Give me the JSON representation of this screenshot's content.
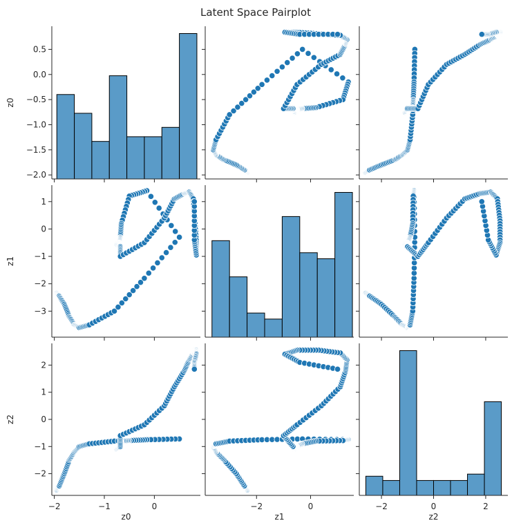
{
  "chart_data": {
    "type": "scatter",
    "title": "Latent Space Pairplot",
    "variables": [
      "z0",
      "z1",
      "z2"
    ],
    "colors": {
      "point": "#1f77b4",
      "point_edge": "#ffffff",
      "hist_fill": "#5a9bc8",
      "hist_edge": "#000000",
      "axis": "#262626"
    },
    "grid": false,
    "axes": {
      "z0": {
        "lim": [
          -2.05,
          0.92
        ],
        "ticks": [
          -2,
          -1,
          0
        ],
        "row_lim": [
          -2.08,
          0.96
        ],
        "row_ticks": [
          -2.0,
          -1.5,
          -1.0,
          -0.5,
          0.0,
          0.5
        ],
        "row_tick_labels": [
          "−2.0",
          "−1.5",
          "−1.0",
          "−0.5",
          "0.0",
          "0.5"
        ],
        "tick_labels": [
          "−2",
          "−1",
          "0"
        ]
      },
      "z1": {
        "lim": [
          -3.9,
          1.6
        ],
        "ticks": [
          -2,
          0
        ],
        "tick_labels": [
          "−2",
          "0"
        ],
        "row_lim": [
          -3.95,
          1.6
        ],
        "row_ticks": [
          -3,
          -2,
          -1,
          0,
          1
        ],
        "row_tick_labels": [
          "−3",
          "−2",
          "−1",
          "0",
          "1"
        ]
      },
      "z2": {
        "lim": [
          -2.85,
          2.85
        ],
        "ticks": [
          -2,
          0,
          2
        ],
        "tick_labels": [
          "−2",
          "0",
          "2"
        ],
        "row_lim": [
          -2.8,
          2.8
        ],
        "row_ticks": [
          -2,
          -1,
          0,
          1,
          2
        ],
        "row_tick_labels": [
          "−2",
          "−1",
          "0",
          "1",
          "2"
        ]
      }
    },
    "histograms": {
      "z0": {
        "edges": [
          -1.95,
          -1.6,
          -1.25,
          -0.9,
          -0.55,
          -0.2,
          0.15,
          0.5,
          0.85
        ],
        "counts": [
          18,
          14,
          8,
          22,
          9,
          9,
          11,
          31
        ]
      },
      "z1": {
        "edges": [
          -3.65,
          -3.0,
          -2.35,
          -1.7,
          -1.05,
          -0.4,
          0.25,
          0.9,
          1.55
        ],
        "counts": [
          16,
          10,
          4,
          3,
          20,
          14,
          13,
          24
        ]
      },
      "z2": {
        "edges": [
          -2.6,
          -1.95,
          -1.3,
          -0.65,
          0.0,
          0.65,
          1.3,
          1.95,
          2.6
        ],
        "counts": [
          9,
          7,
          68,
          7,
          7,
          7,
          10,
          44
        ]
      }
    },
    "keypoints": [
      [
        -2.6,
        -1.95,
        -2.35
      ],
      [
        -2.45,
        -1.9,
        -2.45
      ],
      [
        -2.0,
        -1.8,
        -2.75
      ],
      [
        -1.5,
        -1.7,
        -3.2
      ],
      [
        -1.2,
        -1.6,
        -3.5
      ],
      [
        -1.0,
        -1.5,
        -3.6
      ],
      [
        -0.9,
        -1.3,
        -3.5
      ],
      [
        -0.8,
        -0.8,
        -3.0
      ],
      [
        -0.75,
        -0.2,
        -1.8
      ],
      [
        -0.72,
        0.5,
        -0.3
      ],
      [
        -0.75,
        -0.15,
        1.4
      ],
      [
        -0.78,
        -0.5,
        1.2
      ],
      [
        -0.8,
        -0.66,
        0.2
      ],
      [
        -0.9,
        -0.68,
        -0.3
      ],
      [
        -1.0,
        -0.7,
        -0.5
      ],
      [
        -1.05,
        -0.72,
        -0.55
      ],
      [
        -1.08,
        -0.75,
        -0.55
      ],
      [
        -1.1,
        -0.75,
        -0.6
      ],
      [
        -1.0,
        -0.68,
        -0.65
      ],
      [
        -0.6,
        -0.68,
        -1.0
      ],
      [
        -0.2,
        -0.2,
        -0.5
      ],
      [
        0.5,
        0.2,
        0.4
      ],
      [
        1.2,
        0.4,
        1.1
      ],
      [
        1.8,
        0.6,
        1.3
      ],
      [
        2.2,
        0.7,
        1.35
      ],
      [
        2.45,
        0.78,
        1.1
      ],
      [
        2.55,
        0.81,
        0.3
      ],
      [
        2.55,
        0.84,
        -0.5
      ],
      [
        2.4,
        0.84,
        -0.95
      ],
      [
        2.1,
        0.8,
        -0.4
      ],
      [
        1.85,
        0.8,
        1.0
      ]
    ]
  }
}
